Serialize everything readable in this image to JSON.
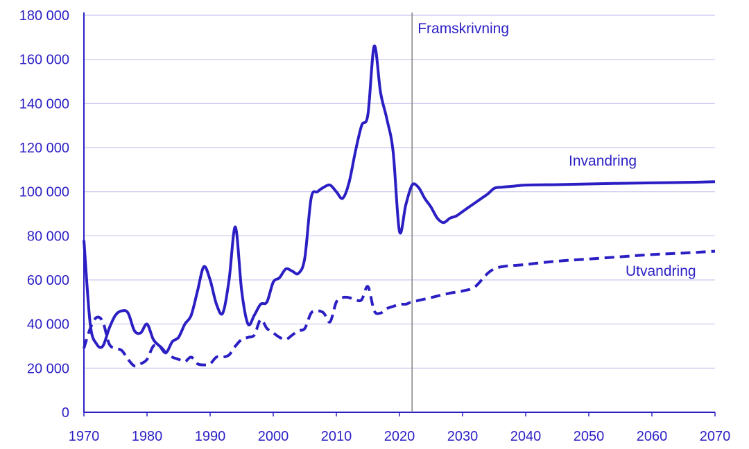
{
  "chart_data": {
    "type": "line",
    "title": "",
    "xlabel": "",
    "ylabel": "",
    "xlim": [
      1970,
      2070
    ],
    "ylim": [
      0,
      180000
    ],
    "grid": "horizontal",
    "x_ticks": [
      1970,
      1980,
      1990,
      2000,
      2010,
      2020,
      2030,
      2040,
      2050,
      2060,
      2070
    ],
    "y_ticks": [
      0,
      20000,
      40000,
      60000,
      80000,
      100000,
      120000,
      140000,
      160000,
      180000
    ],
    "x_tick_labels": [
      "1970",
      "1980",
      "1990",
      "2000",
      "2010",
      "2020",
      "2030",
      "2040",
      "2050",
      "2060",
      "2070"
    ],
    "y_tick_labels": [
      "0",
      "20 000",
      "40 000",
      "60 000",
      "80 000",
      "100 000",
      "120 000",
      "140 000",
      "160 000",
      "180 000"
    ],
    "vline": {
      "x": 2022,
      "label": "Framskrivning"
    },
    "colors": {
      "series": "#2b1fc4",
      "grid": "#c9c7ee",
      "vline": "#8a8a8a",
      "axis": "#2b1fc4"
    },
    "series": [
      {
        "name": "Invandring",
        "style": "solid",
        "x": [
          1970,
          1971,
          1972,
          1973,
          1974,
          1975,
          1976,
          1977,
          1978,
          1979,
          1980,
          1981,
          1982,
          1983,
          1984,
          1985,
          1986,
          1987,
          1988,
          1989,
          1990,
          1991,
          1992,
          1993,
          1994,
          1995,
          1996,
          1997,
          1998,
          1999,
          2000,
          2001,
          2002,
          2003,
          2004,
          2005,
          2006,
          2007,
          2008,
          2009,
          2010,
          2011,
          2012,
          2013,
          2014,
          2015,
          2016,
          2017,
          2018,
          2019,
          2020,
          2021,
          2022,
          2023,
          2024,
          2025,
          2026,
          2027,
          2028,
          2029,
          2030,
          2031,
          2032,
          2033,
          2034,
          2035,
          2036,
          2038,
          2040,
          2045,
          2050,
          2055,
          2060,
          2065,
          2070
        ],
        "y": [
          78000,
          40000,
          31000,
          30000,
          38000,
          44000,
          46000,
          45000,
          37000,
          36000,
          40000,
          33000,
          30000,
          27000,
          32000,
          34000,
          40000,
          44000,
          55000,
          66000,
          60000,
          49000,
          45000,
          60000,
          84000,
          55000,
          40000,
          44000,
          49000,
          50000,
          59000,
          61000,
          65000,
          64000,
          63000,
          70000,
          97000,
          100000,
          102000,
          103000,
          100000,
          97000,
          104000,
          118000,
          130000,
          135000,
          166000,
          145000,
          133000,
          118000,
          82000,
          94000,
          103000,
          102000,
          97000,
          93000,
          88000,
          86000,
          88000,
          89000,
          91000,
          93000,
          95000,
          97000,
          99000,
          101500,
          102000,
          102500,
          103000,
          103200,
          103500,
          103800,
          104000,
          104200,
          104500
        ]
      },
      {
        "name": "Utvandring",
        "style": "dashed",
        "x": [
          1970,
          1971,
          1972,
          1973,
          1974,
          1975,
          1976,
          1977,
          1978,
          1979,
          1980,
          1981,
          1982,
          1983,
          1984,
          1985,
          1986,
          1987,
          1988,
          1989,
          1990,
          1991,
          1992,
          1993,
          1994,
          1995,
          1996,
          1997,
          1998,
          1999,
          2000,
          2001,
          2002,
          2003,
          2004,
          2005,
          2006,
          2007,
          2008,
          2009,
          2010,
          2011,
          2012,
          2013,
          2014,
          2015,
          2016,
          2017,
          2018,
          2019,
          2020,
          2021,
          2022,
          2025,
          2028,
          2030,
          2032,
          2035,
          2040,
          2045,
          2050,
          2055,
          2060,
          2065,
          2070
        ],
        "y": [
          29000,
          38000,
          43000,
          41000,
          31000,
          29000,
          28000,
          24000,
          21000,
          22000,
          24000,
          30000,
          30000,
          27000,
          25000,
          24000,
          23000,
          25000,
          22000,
          21500,
          22000,
          25000,
          25000,
          26000,
          30000,
          33000,
          34000,
          35000,
          42000,
          38000,
          36000,
          34000,
          33000,
          35000,
          37000,
          38000,
          45000,
          46000,
          45000,
          41000,
          50000,
          52000,
          52000,
          51000,
          51000,
          57000,
          46000,
          45000,
          47000,
          48000,
          49000,
          49000,
          50000,
          52000,
          54000,
          55000,
          57000,
          65000,
          67000,
          68500,
          69500,
          70500,
          71500,
          72200,
          73000
        ]
      }
    ]
  }
}
